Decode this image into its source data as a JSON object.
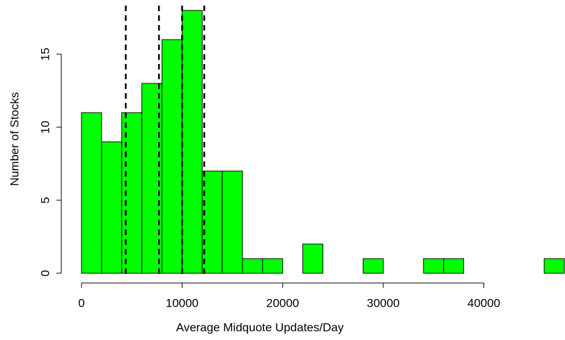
{
  "chart_data": {
    "type": "histogram",
    "xlabel": "Average Midquote Updates/Day",
    "ylabel": "Number of Stocks",
    "bins": [
      0,
      2000,
      4000,
      6000,
      8000,
      10000,
      12000,
      14000,
      16000,
      18000,
      20000,
      22000,
      24000,
      26000,
      28000,
      30000,
      32000,
      34000,
      36000,
      38000,
      40000,
      42000,
      44000,
      46000,
      48000
    ],
    "counts": [
      11,
      9,
      11,
      13,
      16,
      18,
      7,
      7,
      1,
      1,
      0,
      2,
      0,
      0,
      1,
      0,
      0,
      1,
      1,
      0,
      0,
      0,
      0,
      1
    ],
    "color": "#00ff00",
    "reference_lines": [
      4400,
      7700,
      10000,
      12200
    ],
    "xlim": [
      0,
      48000
    ],
    "xticks": [
      0,
      10000,
      20000,
      30000,
      40000
    ],
    "ylim": [
      0,
      18
    ],
    "yticks": [
      0,
      5,
      10,
      15
    ]
  }
}
